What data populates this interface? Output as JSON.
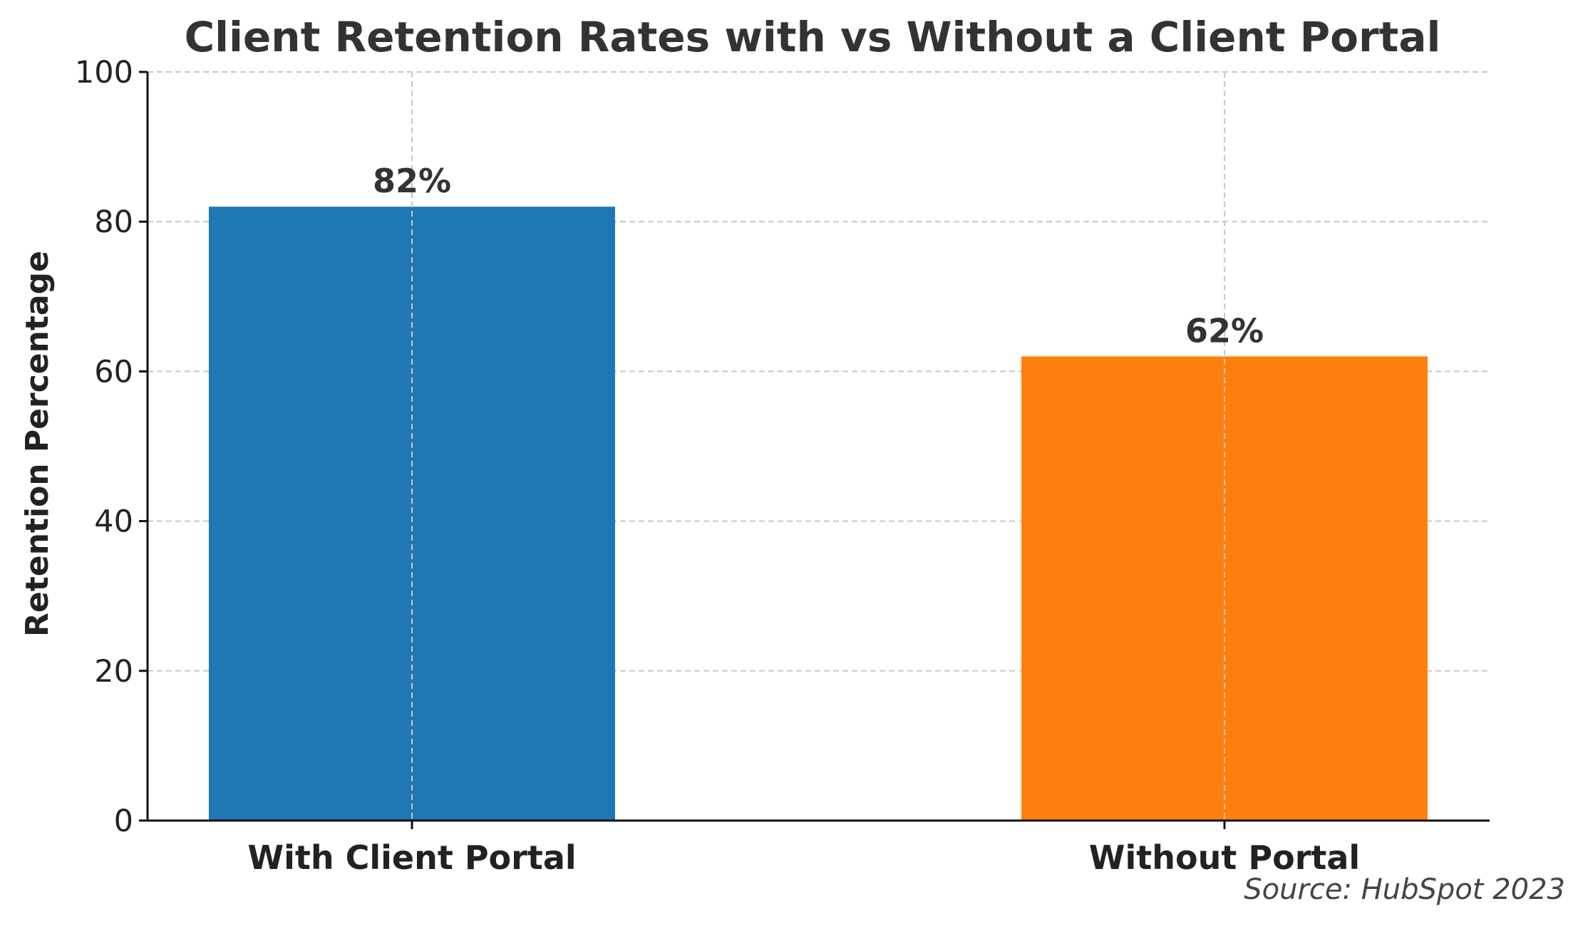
{
  "chart_data": {
    "type": "bar",
    "title": "Client Retention Rates with vs Without a Client Portal",
    "xlabel": "",
    "ylabel": "Retention Percentage",
    "categories": [
      "With Client Portal",
      "Without Portal"
    ],
    "values": [
      82,
      62
    ],
    "data_labels": [
      "82%",
      "62%"
    ],
    "colors": [
      "#1f77b4",
      "#ff7f0e"
    ],
    "ylim": [
      0,
      100
    ],
    "yticks": [
      0,
      20,
      40,
      60,
      80,
      100
    ],
    "ytick_labels": [
      "0",
      "20",
      "40",
      "60",
      "80",
      "100"
    ],
    "grid": true,
    "source": "Source: HubSpot 2023"
  }
}
